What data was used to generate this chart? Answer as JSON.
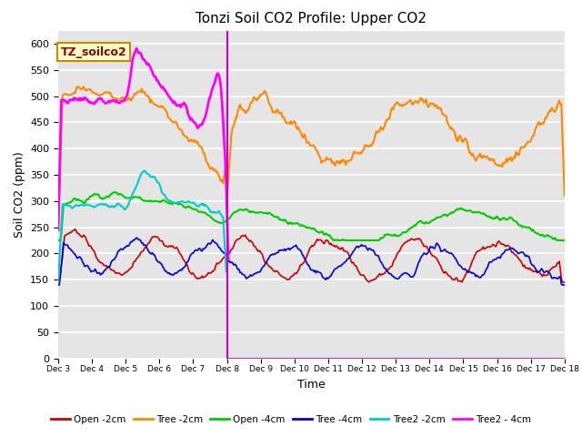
{
  "title": "Tonzi Soil CO2 Profile: Upper CO2",
  "ylabel": "Soil CO2 (ppm)",
  "xlabel": "Time",
  "annotation_label": "TZ_soilco2",
  "ylim": [
    0,
    625
  ],
  "yticks": [
    0,
    50,
    100,
    150,
    200,
    250,
    300,
    350,
    400,
    450,
    500,
    550,
    600
  ],
  "xtick_labels": [
    "Dec 3",
    "Dec 4",
    "Dec 5",
    "Dec 6",
    "Dec 7",
    "Dec 8",
    "Dec 9",
    "Dec 10",
    "Dec 11",
    "Dec 12",
    "Dec 13",
    "Dec 14",
    "Dec 15",
    "Dec 16",
    "Dec 17",
    "Dec 18"
  ],
  "xlim": [
    0,
    15
  ],
  "vline_x": 5.0,
  "plot_bg_color": "#e5e5e5",
  "series": {
    "Open_2cm": {
      "color": "#cc0000",
      "lw": 1.2
    },
    "Tree_2cm": {
      "color": "#ff8800",
      "lw": 1.5
    },
    "Open_4cm": {
      "color": "#00cc00",
      "lw": 1.5
    },
    "Tree_4cm": {
      "color": "#0000dd",
      "lw": 1.2
    },
    "Tree2_2cm": {
      "color": "#00cccc",
      "lw": 1.5
    },
    "Tree2_4cm": {
      "color": "#ff00ff",
      "lw": 2.0
    }
  },
  "legend_entries": [
    {
      "label": "Open -2cm",
      "color": "#cc0000"
    },
    {
      "label": "Tree -2cm",
      "color": "#ff8800"
    },
    {
      "label": "Open -4cm",
      "color": "#00cc00"
    },
    {
      "label": "Tree -4cm",
      "color": "#0000dd"
    },
    {
      "label": "Tree2 -2cm",
      "color": "#00cccc"
    },
    {
      "label": "Tree2 - 4cm",
      "color": "#ff00ff"
    }
  ]
}
